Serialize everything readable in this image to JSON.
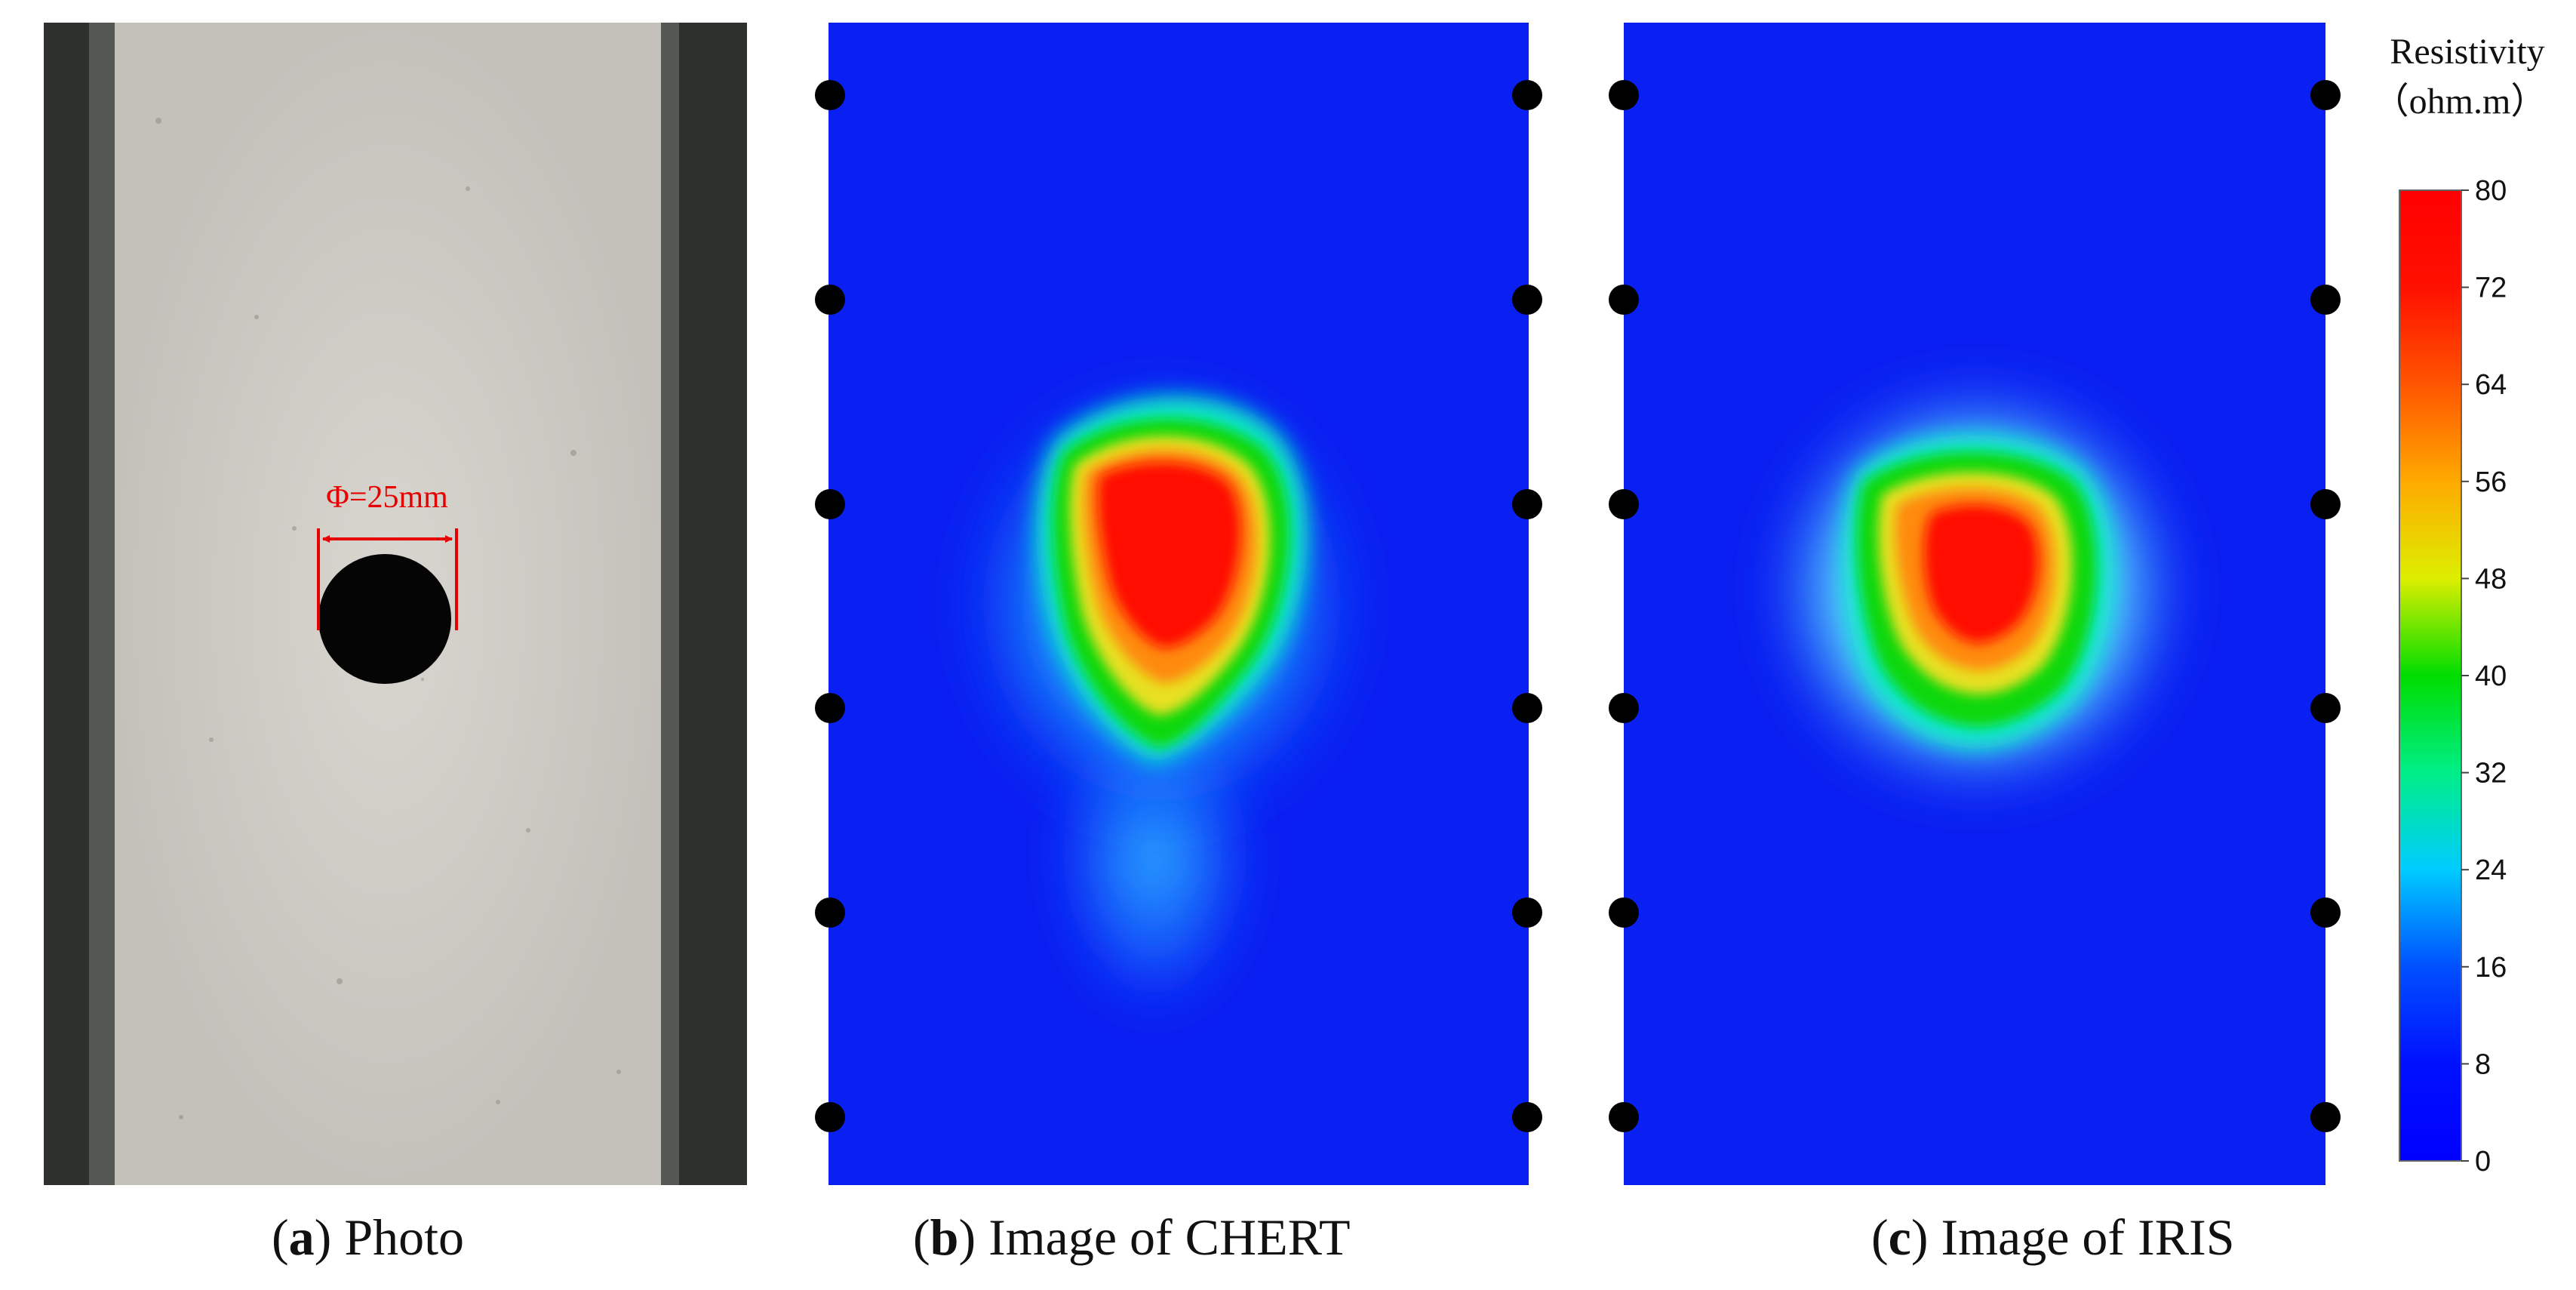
{
  "panel_a": {
    "annotation": "Φ=25mm",
    "caption_letter": "a",
    "caption_text": "Photo"
  },
  "panel_b": {
    "caption_letter": "b",
    "caption_text": "Image of CHERT"
  },
  "panel_c": {
    "caption_letter": "c",
    "caption_text": "Image of IRIS"
  },
  "colorbar": {
    "title_line1": "Resistivity",
    "title_line2": "（ohm.m）",
    "min": 0,
    "max": 80,
    "ticks": [
      "80",
      "72",
      "64",
      "56",
      "48",
      "40",
      "32",
      "24",
      "16",
      "8",
      "0"
    ]
  },
  "electrodes_per_side": 6,
  "colors": {
    "background_low": "#0a1ff2",
    "anomaly_peak": "#ff0000",
    "photo_sample": "#cfccc6",
    "photo_frame": "#2e302d",
    "annotation_red": "#e60000",
    "electrode": "#000000"
  }
}
